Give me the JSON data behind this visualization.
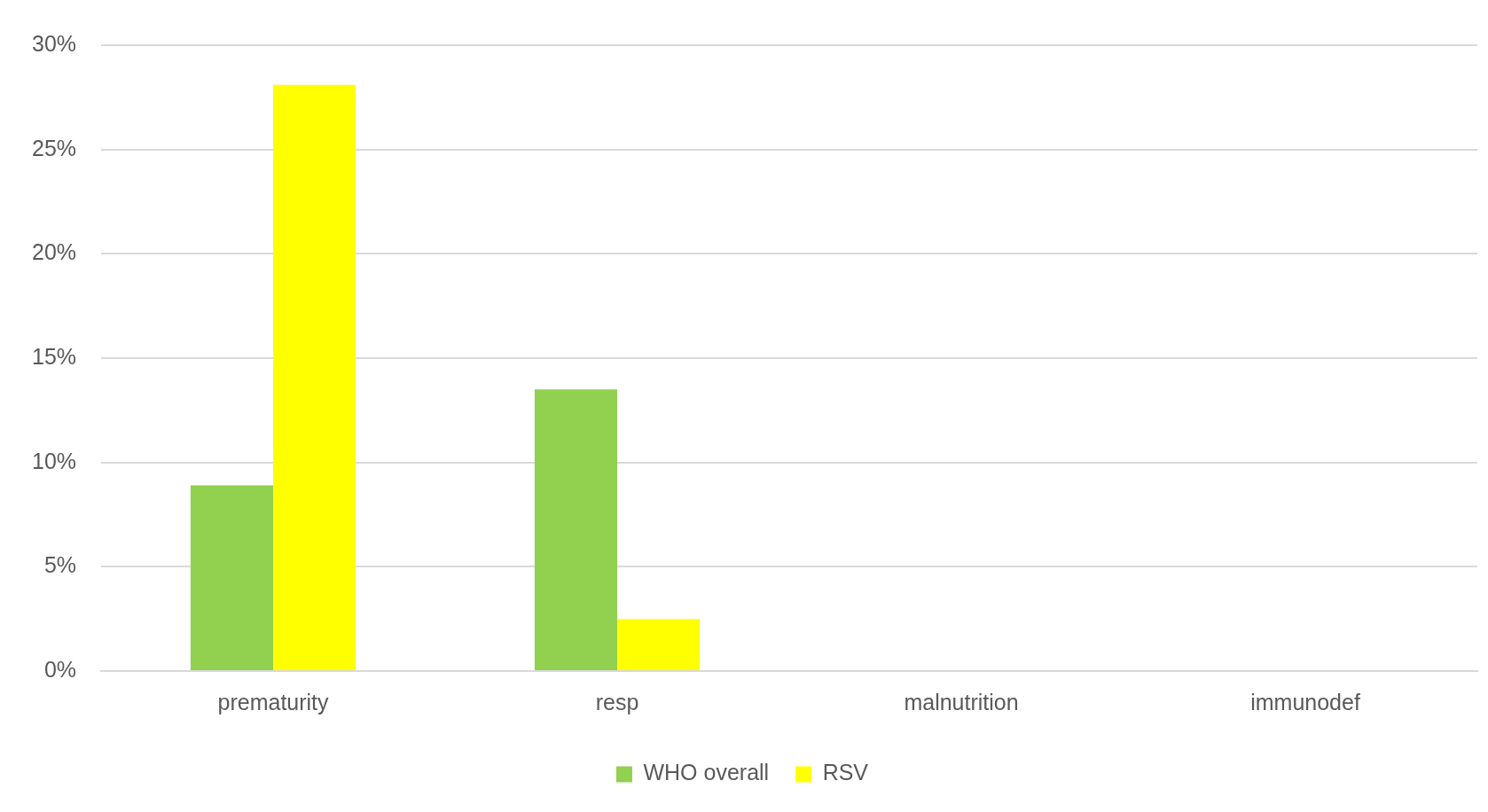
{
  "chart_data": {
    "type": "bar",
    "categories": [
      "prematurity",
      "resp",
      "malnutrition",
      "immunodef"
    ],
    "series": [
      {
        "name": "WHO overall",
        "color": "#92d050",
        "values": [
          8.9,
          13.5,
          null,
          null
        ]
      },
      {
        "name": "RSV",
        "color": "#ffff00",
        "values": [
          28.1,
          2.5,
          null,
          null
        ]
      }
    ],
    "ylim": [
      0,
      30
    ],
    "yticks": [
      {
        "value": 0,
        "label": "0%"
      },
      {
        "value": 5,
        "label": "5%"
      },
      {
        "value": 10,
        "label": "10%"
      },
      {
        "value": 15,
        "label": "15%"
      },
      {
        "value": 20,
        "label": "20%"
      },
      {
        "value": 25,
        "label": "25%"
      },
      {
        "value": 30,
        "label": "30%"
      }
    ],
    "grid": "y",
    "legend": "bottom"
  }
}
